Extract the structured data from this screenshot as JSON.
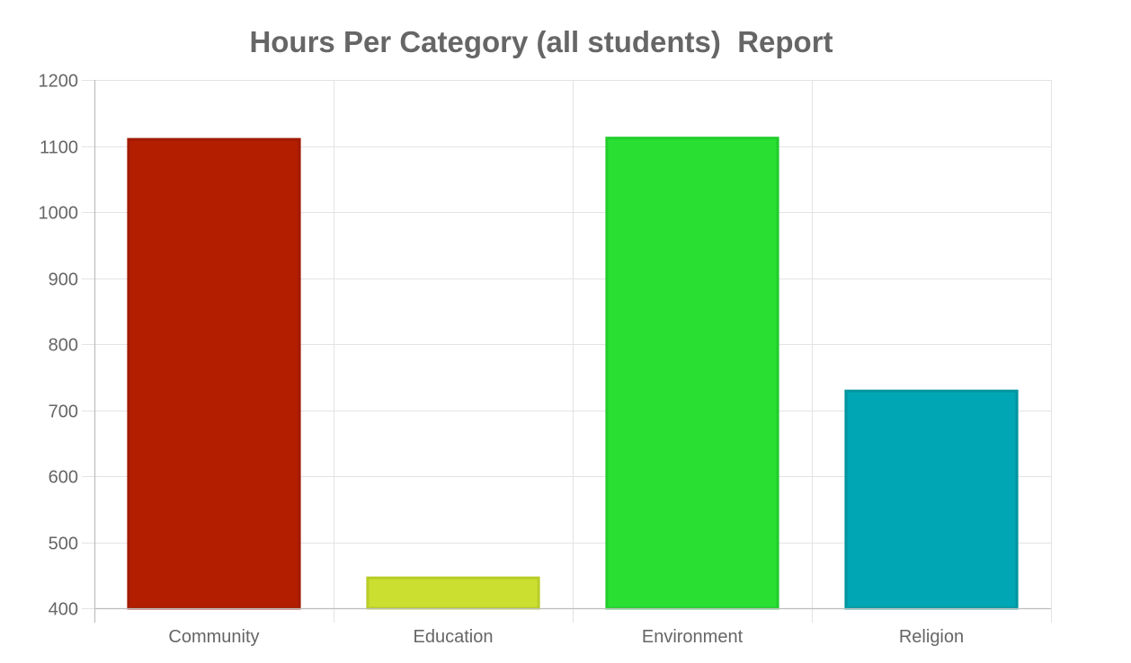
{
  "chart_data": {
    "type": "bar",
    "title": "Hours Per Category (all students)  Report",
    "xlabel": "",
    "ylabel": "",
    "categories": [
      "Community",
      "Education",
      "Environment",
      "Religion"
    ],
    "values": [
      1110,
      446,
      1112,
      729
    ],
    "colors": [
      "#b31e00",
      "#cadf2f",
      "#29e032",
      "#00a6b3"
    ],
    "border_colors": [
      "#a01a00",
      "#b8cc28",
      "#22cc2c",
      "#00959f"
    ],
    "ylim": [
      400,
      1200
    ],
    "yticks": [
      400,
      500,
      600,
      700,
      800,
      900,
      1000,
      1100,
      1200
    ],
    "grid": true,
    "legend": "none"
  }
}
